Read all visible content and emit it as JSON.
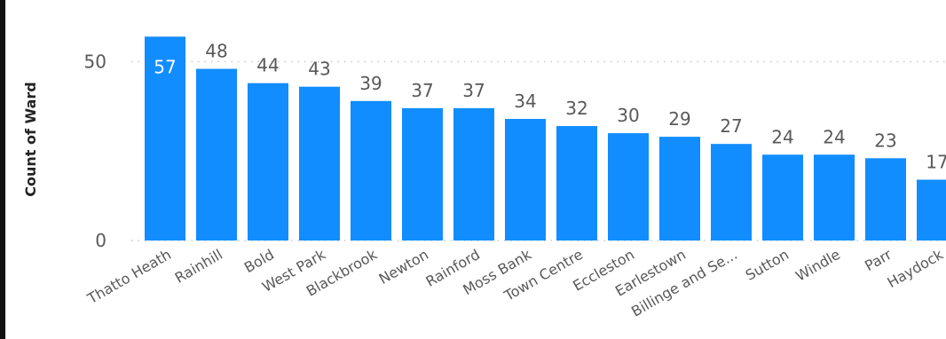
{
  "chart_data": {
    "type": "bar",
    "title": "",
    "xlabel": "",
    "ylabel": "Count of Ward",
    "ylim": [
      0,
      57
    ],
    "yticks": [
      0,
      50
    ],
    "grid": true,
    "legend": "none",
    "colors": {
      "bar": "#118dff",
      "label": "#595959",
      "label_inside": "#ffffff",
      "grid": "#c8c8c8"
    },
    "categories": [
      "Thatto Heath",
      "Rainhill",
      "Bold",
      "West Park",
      "Blackbrook",
      "Newton",
      "Rainford",
      "Moss Bank",
      "Town Centre",
      "Eccleston",
      "Earlestown",
      "Billinge and Se...",
      "Sutton",
      "Windle",
      "Parr",
      "Haydock"
    ],
    "values": [
      57,
      48,
      44,
      43,
      39,
      37,
      37,
      34,
      32,
      30,
      29,
      27,
      24,
      24,
      23,
      17
    ]
  }
}
